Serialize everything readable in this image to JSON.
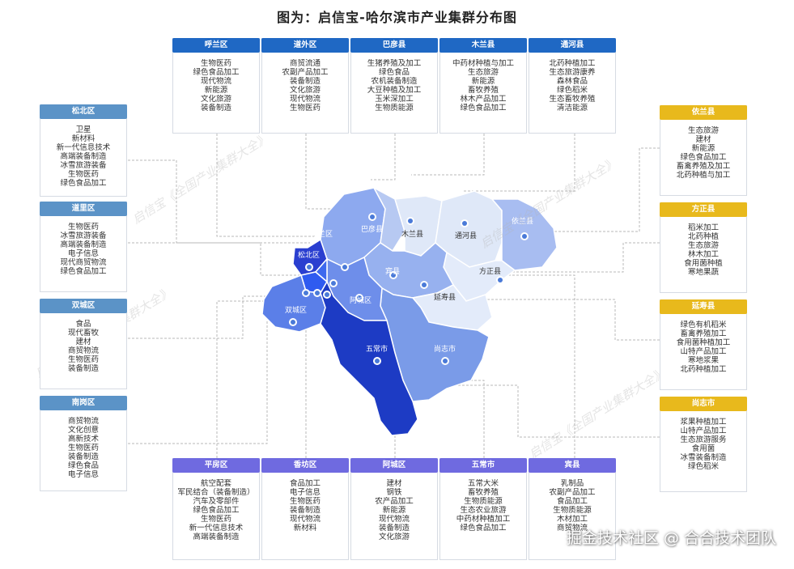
{
  "title": "图为：启信宝-哈尔滨市产业集群分布图",
  "watermark": "启信宝《全国产业集群大全》",
  "brand": "掘金技术社区 @ 合合技术团队",
  "colors": {
    "top_header": "#1f68c4",
    "left_header": "#5b93c7",
    "right_header": "#e8b91c",
    "bottom_header": "#6f6ae0"
  },
  "top_cards": [
    {
      "name": "呼兰区",
      "items": [
        "生物医药",
        "绿色食品加工",
        "现代物流",
        "新能源",
        "文化旅游",
        "装备制造"
      ]
    },
    {
      "name": "道外区",
      "items": [
        "商贸流通",
        "农副产品加工",
        "装备制造",
        "文化旅游",
        "现代物流",
        "生物医药"
      ]
    },
    {
      "name": "巴彦县",
      "items": [
        "生猪养殖及加工",
        "绿色食品",
        "农机装备制造",
        "大豆种植及加工",
        "玉米深加工",
        "生物质能源"
      ]
    },
    {
      "name": "木兰县",
      "items": [
        "中药材种植与加工",
        "生态旅游",
        "新能源",
        "畜牧养殖",
        "林木产品加工",
        "绿色食品加工"
      ]
    },
    {
      "name": "通河县",
      "items": [
        "北药种植加工",
        "生态旅游康养",
        "森林食品",
        "绿色稻米",
        "生态畜牧养殖",
        "清洁能源"
      ]
    }
  ],
  "left_cards": [
    {
      "name": "松北区",
      "items": [
        "卫星",
        "新材料",
        "新一代信息技术",
        "高端装备制造",
        "冰雪旅游装备",
        "生物医药",
        "绿色食品加工"
      ]
    },
    {
      "name": "道里区",
      "items": [
        "生物医药",
        "冰雪旅游装备",
        "高端装备制造",
        "电子信息",
        "现代商贸物流",
        "绿色食品加工"
      ]
    },
    {
      "name": "双城区",
      "items": [
        "食品",
        "现代畜牧",
        "建材",
        "商贸物流",
        "生物医药",
        "装备制造"
      ]
    },
    {
      "name": "南岗区",
      "items": [
        "商贸物流",
        "文化创意",
        "高新技术",
        "生物医药",
        "装备制造",
        "绿色食品",
        "电子信息"
      ]
    }
  ],
  "right_cards": [
    {
      "name": "依兰县",
      "items": [
        "生态旅游",
        "建材",
        "新能源",
        "绿色食品加工",
        "畜禽养殖及加工",
        "北药种植与加工"
      ]
    },
    {
      "name": "方正县",
      "items": [
        "稻米加工",
        "北药种植",
        "生态旅游",
        "林木加工",
        "食用菌种植",
        "寒地果蔬"
      ]
    },
    {
      "name": "延寿县",
      "items": [
        "绿色有机稻米",
        "畜禽养殖加工",
        "食用菌种植加工",
        "山特产品加工",
        "寒地浆果",
        "北药种植加工"
      ]
    },
    {
      "name": "尚志市",
      "items": [
        "浆果种植加工",
        "山特产品加工",
        "生态旅游服务",
        "食用菌",
        "冰雪装备制造",
        "绿色稻米"
      ]
    }
  ],
  "bottom_cards": [
    {
      "name": "平房区",
      "items": [
        "航空配套",
        "军民结合（装备制造）",
        "汽车及零部件",
        "绿色食品加工",
        "生物医药",
        "新一代信息技术",
        "高端装备制造"
      ]
    },
    {
      "name": "香坊区",
      "items": [
        "食品加工",
        "电子信息",
        "生物医药",
        "装备制造",
        "现代物流",
        "新材料"
      ]
    },
    {
      "name": "阿城区",
      "items": [
        "建材",
        "钢铁",
        "农产品加工",
        "新能源",
        "现代物流",
        "装备制造",
        "文化旅游"
      ]
    },
    {
      "name": "五常市",
      "items": [
        "五常大米",
        "畜牧养殖",
        "生物质能源",
        "生态农业旅游",
        "中药材种植加工",
        "绿色食品加工"
      ]
    },
    {
      "name": "宾县",
      "items": [
        "乳制品",
        "农副产品加工",
        "食品加工",
        "生物质能源",
        "木材加工",
        "商贸物流"
      ]
    }
  ],
  "map_labels": [
    "呼兰区",
    "巴彦县",
    "木兰县",
    "通河县",
    "依兰县",
    "松北区",
    "方正县",
    "宾县",
    "阿城区",
    "延寿县",
    "双城区",
    "五常市",
    "尚志市"
  ]
}
